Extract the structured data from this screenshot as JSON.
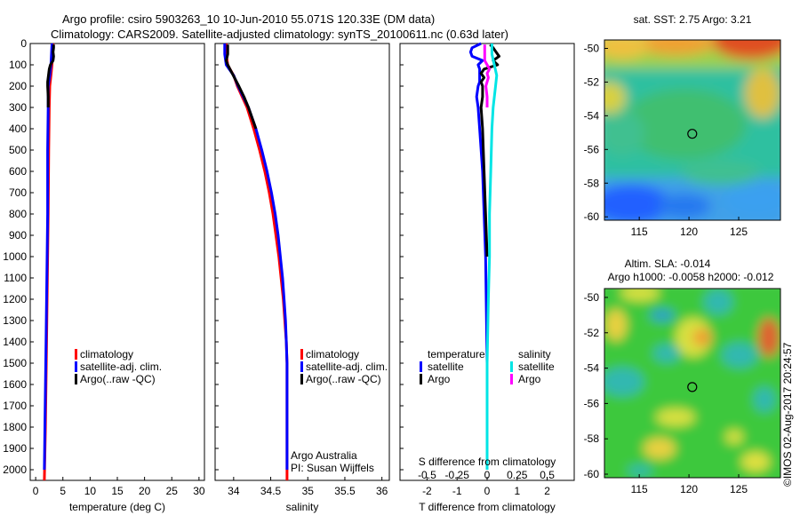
{
  "title": {
    "line1": "Argo profile: csiro 5903263_10 10-Jun-2010 55.071S 120.33E (DM data)",
    "line2": "Climatology: CARS2009. Satellite-adjusted climatology: synTS_20100611.nc (0.63d later)"
  },
  "colors": {
    "climatology": "#ff0000",
    "satellite": "#0000ff",
    "argo": "#000000",
    "sat_salinity": "#00e5e5",
    "argo_salinity": "#ff00ff"
  },
  "chart_data": [
    {
      "type": "line",
      "id": "temperature",
      "xlabel": "temperature (deg C)",
      "ylabel": "",
      "xlim": [
        -1,
        31
      ],
      "ylim": [
        2050,
        0
      ],
      "xticks": [
        "0",
        "5",
        "10",
        "15",
        "20",
        "25",
        "30"
      ],
      "xtick_values": [
        0,
        5,
        10,
        15,
        20,
        25,
        30
      ],
      "yticks": [
        "0",
        "100",
        "200",
        "300",
        "400",
        "500",
        "600",
        "700",
        "800",
        "900",
        "1000",
        "1100",
        "1200",
        "1300",
        "1400",
        "1500",
        "1600",
        "1700",
        "1800",
        "1900",
        "2000"
      ],
      "ytick_values": [
        0,
        100,
        200,
        300,
        400,
        500,
        600,
        700,
        800,
        900,
        1000,
        1100,
        1200,
        1300,
        1400,
        1500,
        1600,
        1700,
        1800,
        1900,
        2000
      ],
      "legend": [
        "climatology",
        "satellite-adj. clim.",
        "Argo(..raw -QC)"
      ],
      "series": [
        {
          "name": "climatology",
          "color": "#ff0000",
          "depth": [
            0,
            50,
            100,
            150,
            200,
            300,
            500,
            800,
            1000,
            1400,
            1800,
            2050
          ],
          "values": [
            3.2,
            3.1,
            3.0,
            2.8,
            2.6,
            2.5,
            2.4,
            2.3,
            2.2,
            2.0,
            1.8,
            1.6
          ]
        },
        {
          "name": "satellite-adj. clim.",
          "color": "#0000ff",
          "depth": [
            0,
            50,
            100,
            150,
            200,
            300,
            500,
            800,
            1000,
            1400,
            1800,
            2000
          ],
          "values": [
            3.0,
            2.9,
            2.8,
            2.6,
            2.3,
            2.3,
            2.2,
            2.2,
            2.1,
            1.9,
            1.7,
            1.6
          ]
        },
        {
          "name": "Argo(..raw -QC)",
          "color": "#000000",
          "depth": [
            5,
            20,
            40,
            60,
            80,
            100,
            120,
            140,
            160,
            180,
            200,
            250,
            300
          ],
          "values": [
            3.3,
            3.3,
            3.2,
            3.3,
            3.2,
            2.7,
            2.5,
            2.4,
            2.3,
            2.2,
            2.2,
            2.3,
            2.3
          ]
        }
      ]
    },
    {
      "type": "line",
      "id": "salinity",
      "xlabel": "salinity",
      "xlim": [
        33.75,
        36.1
      ],
      "ylim": [
        2050,
        0
      ],
      "xticks": [
        "34",
        "34.5",
        "35",
        "35.5",
        "36"
      ],
      "xtick_values": [
        34,
        34.5,
        35,
        35.5,
        36
      ],
      "legend": [
        "climatology",
        "satellite-adj. clim.",
        "Argo(..raw -QC)"
      ],
      "annotation": [
        "Argo Australia",
        "PI: Susan Wijffels"
      ],
      "series": [
        {
          "name": "climatology",
          "color": "#ff0000",
          "depth": [
            0,
            50,
            100,
            120,
            150,
            200,
            300,
            400,
            500,
            600,
            700,
            800,
            900,
            1000,
            1100,
            1200,
            1300,
            1400,
            1500,
            2050
          ],
          "values": [
            33.9,
            33.9,
            33.92,
            33.95,
            34.0,
            34.05,
            34.18,
            34.27,
            34.35,
            34.42,
            34.48,
            34.53,
            34.57,
            34.61,
            34.64,
            34.67,
            34.69,
            34.71,
            34.72,
            34.72
          ]
        },
        {
          "name": "satellite-adj. clim.",
          "color": "#0000ff",
          "depth": [
            0,
            50,
            100,
            120,
            150,
            200,
            300,
            400,
            500,
            600,
            700,
            800,
            900,
            1000,
            1100,
            1200,
            1300,
            1400,
            1500,
            2000
          ],
          "values": [
            33.88,
            33.88,
            33.9,
            33.94,
            34.0,
            34.06,
            34.2,
            34.3,
            34.38,
            34.45,
            34.51,
            34.56,
            34.6,
            34.63,
            34.66,
            34.68,
            34.7,
            34.71,
            34.72,
            34.72
          ]
        },
        {
          "name": "Argo(..raw -QC)",
          "color": "#000000",
          "depth": [
            5,
            50,
            80,
            100,
            120,
            140,
            160,
            180,
            200,
            250,
            300,
            350,
            400
          ],
          "values": [
            33.92,
            33.92,
            33.9,
            33.92,
            33.95,
            33.98,
            34.01,
            34.04,
            34.07,
            34.14,
            34.2,
            34.25,
            34.3
          ]
        }
      ]
    },
    {
      "type": "line",
      "id": "difference",
      "xlabel": "T difference from climatology",
      "x_top_label": "S difference from climatology",
      "xlim": [
        -2.9,
        2.9
      ],
      "ylim": [
        2050,
        0
      ],
      "xticks": [
        "-2",
        "-1",
        "0",
        "1",
        "2"
      ],
      "xtick_values": [
        -2,
        -1,
        0,
        1,
        2
      ],
      "s_ticks": [
        "-0.5",
        "-0.25",
        "0",
        "0.25",
        "0.5"
      ],
      "s_tick_values": [
        -0.5,
        -0.25,
        0,
        0.25,
        0.5
      ],
      "legend_headers": [
        "temperature",
        "salinity"
      ],
      "legend_t": [
        "satellite",
        "Argo"
      ],
      "legend_s": [
        "satellite",
        "Argo"
      ],
      "series": [
        {
          "name": "T satellite",
          "color": "#0000ff",
          "depth": [
            0,
            20,
            40,
            60,
            80,
            100,
            120,
            150,
            180,
            200,
            250,
            300,
            400,
            600,
            800,
            1000,
            1500,
            2000
          ],
          "values": [
            -0.2,
            -0.5,
            -0.55,
            -0.5,
            -0.15,
            -0.3,
            -0.25,
            -0.25,
            -0.25,
            -0.3,
            -0.35,
            -0.3,
            -0.25,
            -0.15,
            -0.1,
            -0.05,
            0.0,
            0.0
          ]
        },
        {
          "name": "T Argo",
          "color": "#000000",
          "depth": [
            5,
            20,
            40,
            60,
            80,
            100,
            120,
            140,
            160,
            180,
            200,
            250,
            300,
            400,
            600,
            800,
            1000
          ],
          "values": [
            0.1,
            0.2,
            0.3,
            0.4,
            0.2,
            0.35,
            -0.1,
            -0.2,
            -0.1,
            -0.2,
            -0.15,
            -0.15,
            -0.2,
            -0.15,
            -0.1,
            -0.05,
            0.0
          ]
        },
        {
          "name": "S satellite",
          "color": "#00e5e5",
          "depth": [
            0,
            50,
            100,
            150,
            200,
            300,
            400,
            600,
            800,
            1000,
            1200,
            1500,
            2000
          ],
          "values": [
            0.04,
            0.04,
            0.06,
            0.08,
            0.07,
            0.05,
            0.04,
            0.03,
            0.02,
            0.02,
            0.01,
            0.0,
            0.0
          ]
        },
        {
          "name": "S Argo",
          "color": "#ff00ff",
          "depth": [
            5,
            50,
            80,
            100,
            120,
            140,
            160,
            180,
            200,
            250,
            300
          ],
          "values": [
            -0.02,
            -0.02,
            -0.02,
            0.0,
            0.02,
            0.0,
            0.01,
            0.0,
            -0.01,
            0.0,
            0.0
          ]
        }
      ]
    },
    {
      "type": "heatmap",
      "id": "sst-map",
      "title": "sat. SST: 2.75 Argo: 3.21",
      "xticks": [
        "115",
        "120",
        "125"
      ],
      "xtick_values": [
        115,
        120,
        125
      ],
      "yticks": [
        "-50",
        "-52",
        "-54",
        "-56",
        "-58",
        "-60"
      ],
      "ytick_values": [
        -50,
        -52,
        -54,
        -56,
        -58,
        -60
      ],
      "xlim": [
        111.5,
        129.2
      ],
      "ylim": [
        -60.2,
        -49.5
      ],
      "marker": {
        "lon": 120.33,
        "lat": -55.07
      }
    },
    {
      "type": "heatmap",
      "id": "sla-map",
      "title_line1": "Altim. SLA: -0.014",
      "title_line2": "Argo h1000: -0.0058 h2000: -0.012",
      "xticks": [
        "115",
        "120",
        "125"
      ],
      "xtick_values": [
        115,
        120,
        125
      ],
      "yticks": [
        "-50",
        "-52",
        "-54",
        "-56",
        "-58",
        "-60"
      ],
      "ytick_values": [
        -50,
        -52,
        -54,
        -56,
        -58,
        -60
      ],
      "xlim": [
        111.5,
        129.2
      ],
      "ylim": [
        -60.2,
        -49.5
      ],
      "marker": {
        "lon": 120.33,
        "lat": -55.07
      }
    }
  ],
  "footer_stamp": "©IMOS 02-Aug-2017 20:24:57"
}
